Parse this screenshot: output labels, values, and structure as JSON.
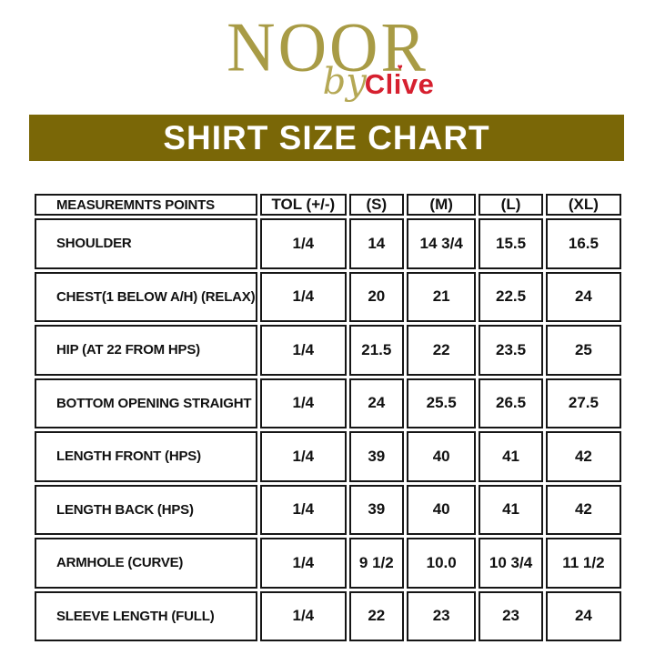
{
  "brand": {
    "name": "NOOR",
    "by_text": "by",
    "sub_name": "Clive",
    "heart_glyph": "♥",
    "gold_color": "#a89b45",
    "red_color": "#d6202f"
  },
  "banner": {
    "title": "SHIRT SIZE CHART",
    "bg_color": "#7a6707",
    "text_color": "#ffffff"
  },
  "table": {
    "columns": [
      "MEASUREMNTS POINTS",
      "TOL (+/-)",
      "(S)",
      "(M)",
      "(L)",
      "(XL)"
    ],
    "rows": [
      {
        "label": "SHOULDER",
        "values": [
          "1/4",
          "14",
          "14 3/4",
          "15.5",
          "16.5"
        ]
      },
      {
        "label": "CHEST(1 BELOW A/H) (RELAX)",
        "values": [
          "1/4",
          "20",
          "21",
          "22.5",
          "24"
        ]
      },
      {
        "label": "HIP (AT 22 FROM HPS)",
        "values": [
          "1/4",
          "21.5",
          "22",
          "23.5",
          "25"
        ]
      },
      {
        "label": "BOTTOM OPENING STRAIGHT",
        "values": [
          "1/4",
          "24",
          "25.5",
          "26.5",
          "27.5"
        ]
      },
      {
        "label": "LENGTH FRONT (HPS)",
        "values": [
          "1/4",
          "39",
          "40",
          "41",
          "42"
        ]
      },
      {
        "label": "LENGTH BACK (HPS)",
        "values": [
          "1/4",
          "39",
          "40",
          "41",
          "42"
        ]
      },
      {
        "label": "ARMHOLE (CURVE)",
        "values": [
          "1/4",
          "9 1/2",
          "10.0",
          "10 3/4",
          "11 1/2"
        ]
      },
      {
        "label": "SLEEVE LENGTH (FULL)",
        "values": [
          "1/4",
          "22",
          "23",
          "23",
          "24"
        ]
      }
    ]
  }
}
